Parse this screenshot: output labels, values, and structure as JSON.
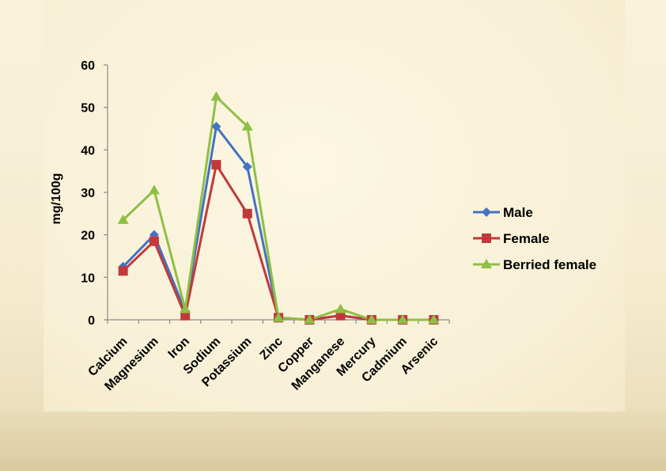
{
  "chart_data": {
    "type": "line",
    "title": "",
    "xlabel": "",
    "ylabel": "mg/100g",
    "ylim": [
      0,
      60
    ],
    "yticks": [
      0,
      10,
      20,
      30,
      40,
      50,
      60
    ],
    "grid": false,
    "legend_position": "right",
    "categories": [
      "Calcium",
      "Magnesium",
      "Iron",
      "Sodium",
      "Potassium",
      "Zinc",
      "Copper",
      "Manganese",
      "Mercury",
      "Cadmium",
      "Arsenic"
    ],
    "series": [
      {
        "name": "Male",
        "color": "#4472c4",
        "marker": "diamond",
        "values": [
          12.5,
          20,
          2,
          45.5,
          36,
          0.5,
          0,
          1,
          0,
          0,
          0
        ]
      },
      {
        "name": "Female",
        "color": "#c0393b",
        "marker": "square",
        "values": [
          11.5,
          18.5,
          1,
          36.5,
          25,
          0.5,
          0,
          1,
          0,
          0,
          0
        ]
      },
      {
        "name": "Berried female",
        "color": "#8fbf44",
        "marker": "triangle",
        "values": [
          23.5,
          30.5,
          2.5,
          52.5,
          45.5,
          0.5,
          0,
          2.5,
          0,
          0,
          0
        ]
      }
    ]
  }
}
